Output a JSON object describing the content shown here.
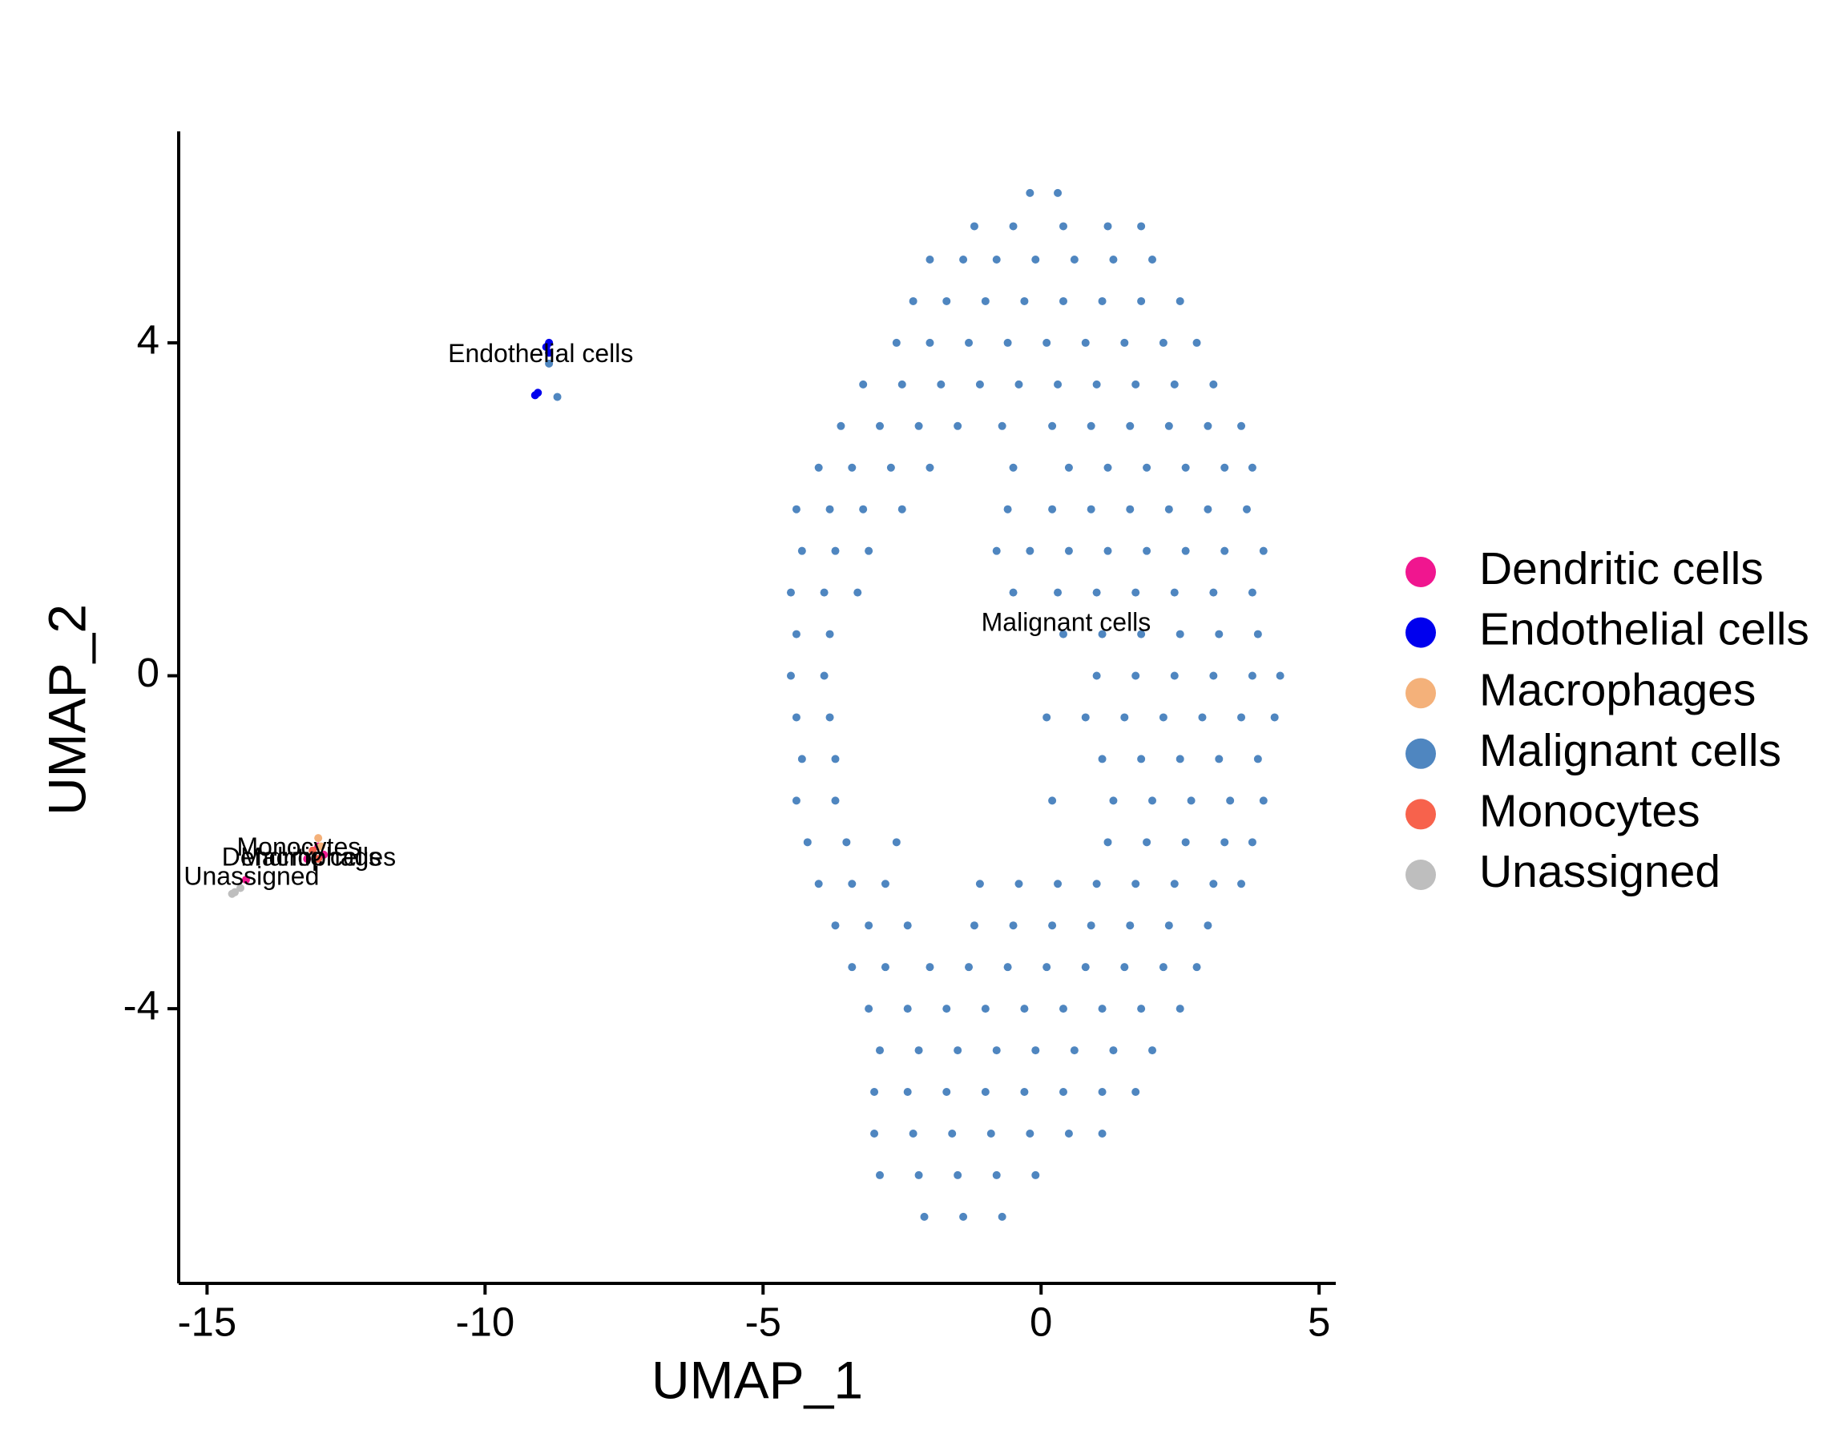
{
  "chart_data": {
    "type": "scatter",
    "x_label": "UMAP_1",
    "y_label": "UMAP_2",
    "xlim": [
      -15.51,
      5.3
    ],
    "ylim": [
      -7.3,
      6.54
    ],
    "xticks": [
      -15,
      -10,
      -5,
      0,
      5
    ],
    "yticks": [
      -4,
      0,
      4
    ],
    "series": [
      {
        "name": "Dendritic cells",
        "color": "#f0168f",
        "x": [
          -13.0,
          -13.2,
          -12.9,
          -14.3
        ],
        "y": [
          -2.05,
          -2.2,
          -2.15,
          -2.45
        ]
      },
      {
        "name": "Endothelial cells",
        "color": "#0000ee",
        "x": [
          -8.85,
          -8.9,
          -8.85,
          -9.1,
          -9.05
        ],
        "y": [
          4.0,
          3.95,
          3.88,
          3.37,
          3.4
        ]
      },
      {
        "name": "Macrophages",
        "color": "#f4b17a",
        "x": [
          -13.0,
          -12.95
        ],
        "y": [
          -1.95,
          -2.05
        ]
      },
      {
        "name": "Malignant cells",
        "color": "#4f86c0",
        "x": [
          -0.2,
          0.3,
          -1.2,
          -0.5,
          0.4,
          1.2,
          1.8,
          -2.0,
          -1.4,
          -0.8,
          -0.1,
          0.6,
          1.3,
          2.0,
          -2.3,
          -1.7,
          -1.0,
          -0.3,
          0.4,
          1.1,
          1.8,
          2.5,
          -2.6,
          -2.0,
          -1.3,
          -0.6,
          0.1,
          0.8,
          1.5,
          2.2,
          2.8,
          -3.2,
          -2.5,
          -1.8,
          -1.1,
          -0.4,
          0.3,
          1.0,
          1.7,
          2.4,
          3.1,
          -3.6,
          -2.9,
          -2.2,
          -1.5,
          -0.7,
          0.2,
          0.9,
          1.6,
          2.3,
          3.0,
          3.6,
          -4.0,
          -3.4,
          -2.7,
          -2.0,
          -0.5,
          0.5,
          1.2,
          1.9,
          2.6,
          3.3,
          3.8,
          -4.4,
          -3.8,
          -3.2,
          -2.5,
          -0.6,
          0.2,
          0.9,
          1.6,
          2.3,
          3.0,
          3.7,
          -4.3,
          -3.7,
          -3.1,
          -0.8,
          -0.2,
          0.5,
          1.2,
          1.9,
          2.6,
          3.3,
          4.0,
          -4.5,
          -3.9,
          -3.3,
          -0.5,
          0.3,
          1.0,
          1.7,
          2.4,
          3.1,
          3.8,
          -4.4,
          -3.8,
          0.4,
          1.1,
          1.8,
          2.5,
          3.2,
          3.9,
          -4.5,
          -3.9,
          1.0,
          1.7,
          2.4,
          3.1,
          3.8,
          4.3,
          -4.4,
          -3.8,
          0.1,
          0.8,
          1.5,
          2.2,
          2.9,
          3.6,
          4.2,
          -4.3,
          -3.7,
          1.1,
          1.8,
          2.5,
          3.2,
          3.9,
          -4.4,
          -3.7,
          0.2,
          1.3,
          2.0,
          2.7,
          3.4,
          4.0,
          -4.2,
          -3.5,
          -2.6,
          1.2,
          1.9,
          2.6,
          3.3,
          3.8,
          -4.0,
          -3.4,
          -2.8,
          -1.1,
          -0.4,
          0.3,
          1.0,
          1.7,
          2.4,
          3.1,
          3.6,
          -3.7,
          -3.1,
          -2.4,
          -1.2,
          -0.5,
          0.2,
          0.9,
          1.6,
          2.3,
          3.0,
          -3.4,
          -2.8,
          -2.0,
          -1.3,
          -0.6,
          0.1,
          0.8,
          1.5,
          2.2,
          2.8,
          -3.1,
          -2.4,
          -1.7,
          -1.0,
          -0.3,
          0.4,
          1.1,
          1.8,
          2.5,
          -2.9,
          -2.2,
          -1.5,
          -0.8,
          -0.1,
          0.6,
          1.3,
          2.0,
          -3.0,
          -2.4,
          -1.7,
          -1.0,
          -0.3,
          0.4,
          1.1,
          1.7,
          -3.0,
          -2.3,
          -1.6,
          -0.9,
          -0.2,
          0.5,
          1.1,
          -2.9,
          -2.2,
          -1.5,
          -0.8,
          -0.1,
          -2.1,
          -1.4,
          -0.7,
          -8.7,
          -8.85
        ],
        "y": [
          5.8,
          5.8,
          5.4,
          5.4,
          5.4,
          5.4,
          5.4,
          5.0,
          5.0,
          5.0,
          5.0,
          5.0,
          5.0,
          5.0,
          4.5,
          4.5,
          4.5,
          4.5,
          4.5,
          4.5,
          4.5,
          4.5,
          4.0,
          4.0,
          4.0,
          4.0,
          4.0,
          4.0,
          4.0,
          4.0,
          4.0,
          3.5,
          3.5,
          3.5,
          3.5,
          3.5,
          3.5,
          3.5,
          3.5,
          3.5,
          3.5,
          3.0,
          3.0,
          3.0,
          3.0,
          3.0,
          3.0,
          3.0,
          3.0,
          3.0,
          3.0,
          3.0,
          2.5,
          2.5,
          2.5,
          2.5,
          2.5,
          2.5,
          2.5,
          2.5,
          2.5,
          2.5,
          2.5,
          2.0,
          2.0,
          2.0,
          2.0,
          2.0,
          2.0,
          2.0,
          2.0,
          2.0,
          2.0,
          2.0,
          1.5,
          1.5,
          1.5,
          1.5,
          1.5,
          1.5,
          1.5,
          1.5,
          1.5,
          1.5,
          1.5,
          1.0,
          1.0,
          1.0,
          1.0,
          1.0,
          1.0,
          1.0,
          1.0,
          1.0,
          1.0,
          0.5,
          0.5,
          0.5,
          0.5,
          0.5,
          0.5,
          0.5,
          0.5,
          0.0,
          0.0,
          0.0,
          0.0,
          0.0,
          0.0,
          0.0,
          0.0,
          -0.5,
          -0.5,
          -0.5,
          -0.5,
          -0.5,
          -0.5,
          -0.5,
          -0.5,
          -0.5,
          -1.0,
          -1.0,
          -1.0,
          -1.0,
          -1.0,
          -1.0,
          -1.0,
          -1.5,
          -1.5,
          -1.5,
          -1.5,
          -1.5,
          -1.5,
          -1.5,
          -1.5,
          -2.0,
          -2.0,
          -2.0,
          -2.0,
          -2.0,
          -2.0,
          -2.0,
          -2.0,
          -2.5,
          -2.5,
          -2.5,
          -2.5,
          -2.5,
          -2.5,
          -2.5,
          -2.5,
          -2.5,
          -2.5,
          -2.5,
          -3.0,
          -3.0,
          -3.0,
          -3.0,
          -3.0,
          -3.0,
          -3.0,
          -3.0,
          -3.0,
          -3.0,
          -3.5,
          -3.5,
          -3.5,
          -3.5,
          -3.5,
          -3.5,
          -3.5,
          -3.5,
          -3.5,
          -3.5,
          -4.0,
          -4.0,
          -4.0,
          -4.0,
          -4.0,
          -4.0,
          -4.0,
          -4.0,
          -4.0,
          -4.5,
          -4.5,
          -4.5,
          -4.5,
          -4.5,
          -4.5,
          -4.5,
          -4.5,
          -5.0,
          -5.0,
          -5.0,
          -5.0,
          -5.0,
          -5.0,
          -5.0,
          -5.0,
          -5.5,
          -5.5,
          -5.5,
          -5.5,
          -5.5,
          -5.5,
          -5.5,
          -6.0,
          -6.0,
          -6.0,
          -6.0,
          -6.0,
          -6.5,
          -6.5,
          -6.5,
          3.35,
          3.75
        ]
      },
      {
        "name": "Monocytes",
        "color": "#f7624c",
        "x": [
          -13.1,
          -13.0
        ],
        "y": [
          -2.1,
          -2.2
        ]
      },
      {
        "name": "Unassigned",
        "color": "#bebebe",
        "x": [
          -14.5,
          -14.4,
          -14.55
        ],
        "y": [
          -2.6,
          -2.55,
          -2.62
        ]
      }
    ],
    "annotations": [
      {
        "text": "Endothelial cells",
        "x": -9.0,
        "y": 3.85
      },
      {
        "text": "Malignant cells",
        "x": 0.45,
        "y": 0.62
      },
      {
        "text": "Monocytes",
        "x": -13.35,
        "y": -2.08
      },
      {
        "text": "Macrophages",
        "x": -13.0,
        "y": -2.2
      },
      {
        "text": "Dendritic cells",
        "x": -13.3,
        "y": -2.2
      },
      {
        "text": "Unassigned",
        "x": -14.2,
        "y": -2.43
      }
    ],
    "legend": "right"
  }
}
